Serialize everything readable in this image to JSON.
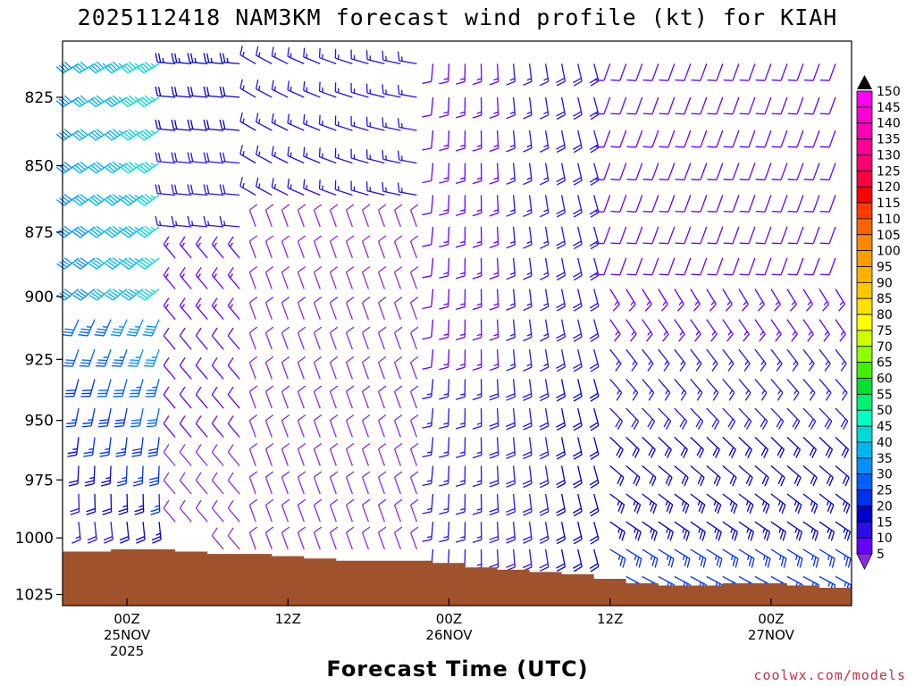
{
  "chart_data": {
    "type": "wind_barb_timeseries",
    "title": "2025112418 NAM3KM forecast wind profile (kt) for KIAH",
    "xlabel": "Forecast Time (UTC)",
    "credit": "coolwx.com/models",
    "units": "kt",
    "y_axis": {
      "quantity": "pressure (hPa)",
      "range": [
        805,
        1030
      ],
      "inverted": true,
      "ticks": [
        "825",
        "850",
        "875",
        "900",
        "925",
        "950",
        "975",
        "1000",
        "1025"
      ]
    },
    "x_axis": {
      "range_hours": [
        -4,
        45
      ],
      "ticks": [
        {
          "hour": 0,
          "lines": [
            "00Z",
            "25NOV",
            "2025"
          ]
        },
        {
          "hour": 10,
          "lines": [
            "12Z"
          ]
        },
        {
          "hour": 20,
          "lines": [
            "00Z",
            "26NOV"
          ]
        },
        {
          "hour": 30,
          "lines": [
            "12Z"
          ]
        },
        {
          "hour": 40,
          "lines": [
            "00Z",
            "27NOV"
          ]
        }
      ]
    },
    "colorbar": {
      "levels": [
        "5",
        "10",
        "15",
        "20",
        "25",
        "30",
        "35",
        "40",
        "45",
        "50",
        "55",
        "60",
        "65",
        "70",
        "75",
        "80",
        "85",
        "90",
        "95",
        "100",
        "105",
        "110",
        "115",
        "120",
        "125",
        "130",
        "135",
        "140",
        "145",
        "150"
      ],
      "colors": [
        "#8a2be2",
        "#6600ff",
        "#2a10e8",
        "#0000c8",
        "#0030f0",
        "#0060ff",
        "#0090ff",
        "#00b4f0",
        "#00d8d8",
        "#00ffc0",
        "#00f070",
        "#00e030",
        "#40f000",
        "#90ff00",
        "#ccff00",
        "#ffff00",
        "#ffe000",
        "#ffc800",
        "#ffb000",
        "#ff9c00",
        "#ff8800",
        "#ff6400",
        "#ff3c00",
        "#ff0000",
        "#ff0040",
        "#ff0070",
        "#ff0096",
        "#ff00b4",
        "#ff00d2",
        "#ff00f0"
      ]
    },
    "surface_pressure": [
      {
        "hour": -4,
        "p": 1006
      },
      {
        "hour": -2,
        "p": 1006
      },
      {
        "hour": 0,
        "p": 1005
      },
      {
        "hour": 2,
        "p": 1005
      },
      {
        "hour": 4,
        "p": 1006
      },
      {
        "hour": 6,
        "p": 1007
      },
      {
        "hour": 8,
        "p": 1007
      },
      {
        "hour": 10,
        "p": 1008
      },
      {
        "hour": 12,
        "p": 1009
      },
      {
        "hour": 14,
        "p": 1010
      },
      {
        "hour": 16,
        "p": 1010
      },
      {
        "hour": 18,
        "p": 1010
      },
      {
        "hour": 20,
        "p": 1011
      },
      {
        "hour": 22,
        "p": 1013
      },
      {
        "hour": 24,
        "p": 1014
      },
      {
        "hour": 26,
        "p": 1015
      },
      {
        "hour": 28,
        "p": 1016
      },
      {
        "hour": 30,
        "p": 1018
      },
      {
        "hour": 32,
        "p": 1020
      },
      {
        "hour": 34,
        "p": 1021
      },
      {
        "hour": 36,
        "p": 1021
      },
      {
        "hour": 38,
        "p": 1020
      },
      {
        "hour": 40,
        "p": 1020
      },
      {
        "hour": 42,
        "p": 1021
      },
      {
        "hour": 44,
        "p": 1022
      },
      {
        "hour": 45,
        "p": 1022
      }
    ]
  }
}
